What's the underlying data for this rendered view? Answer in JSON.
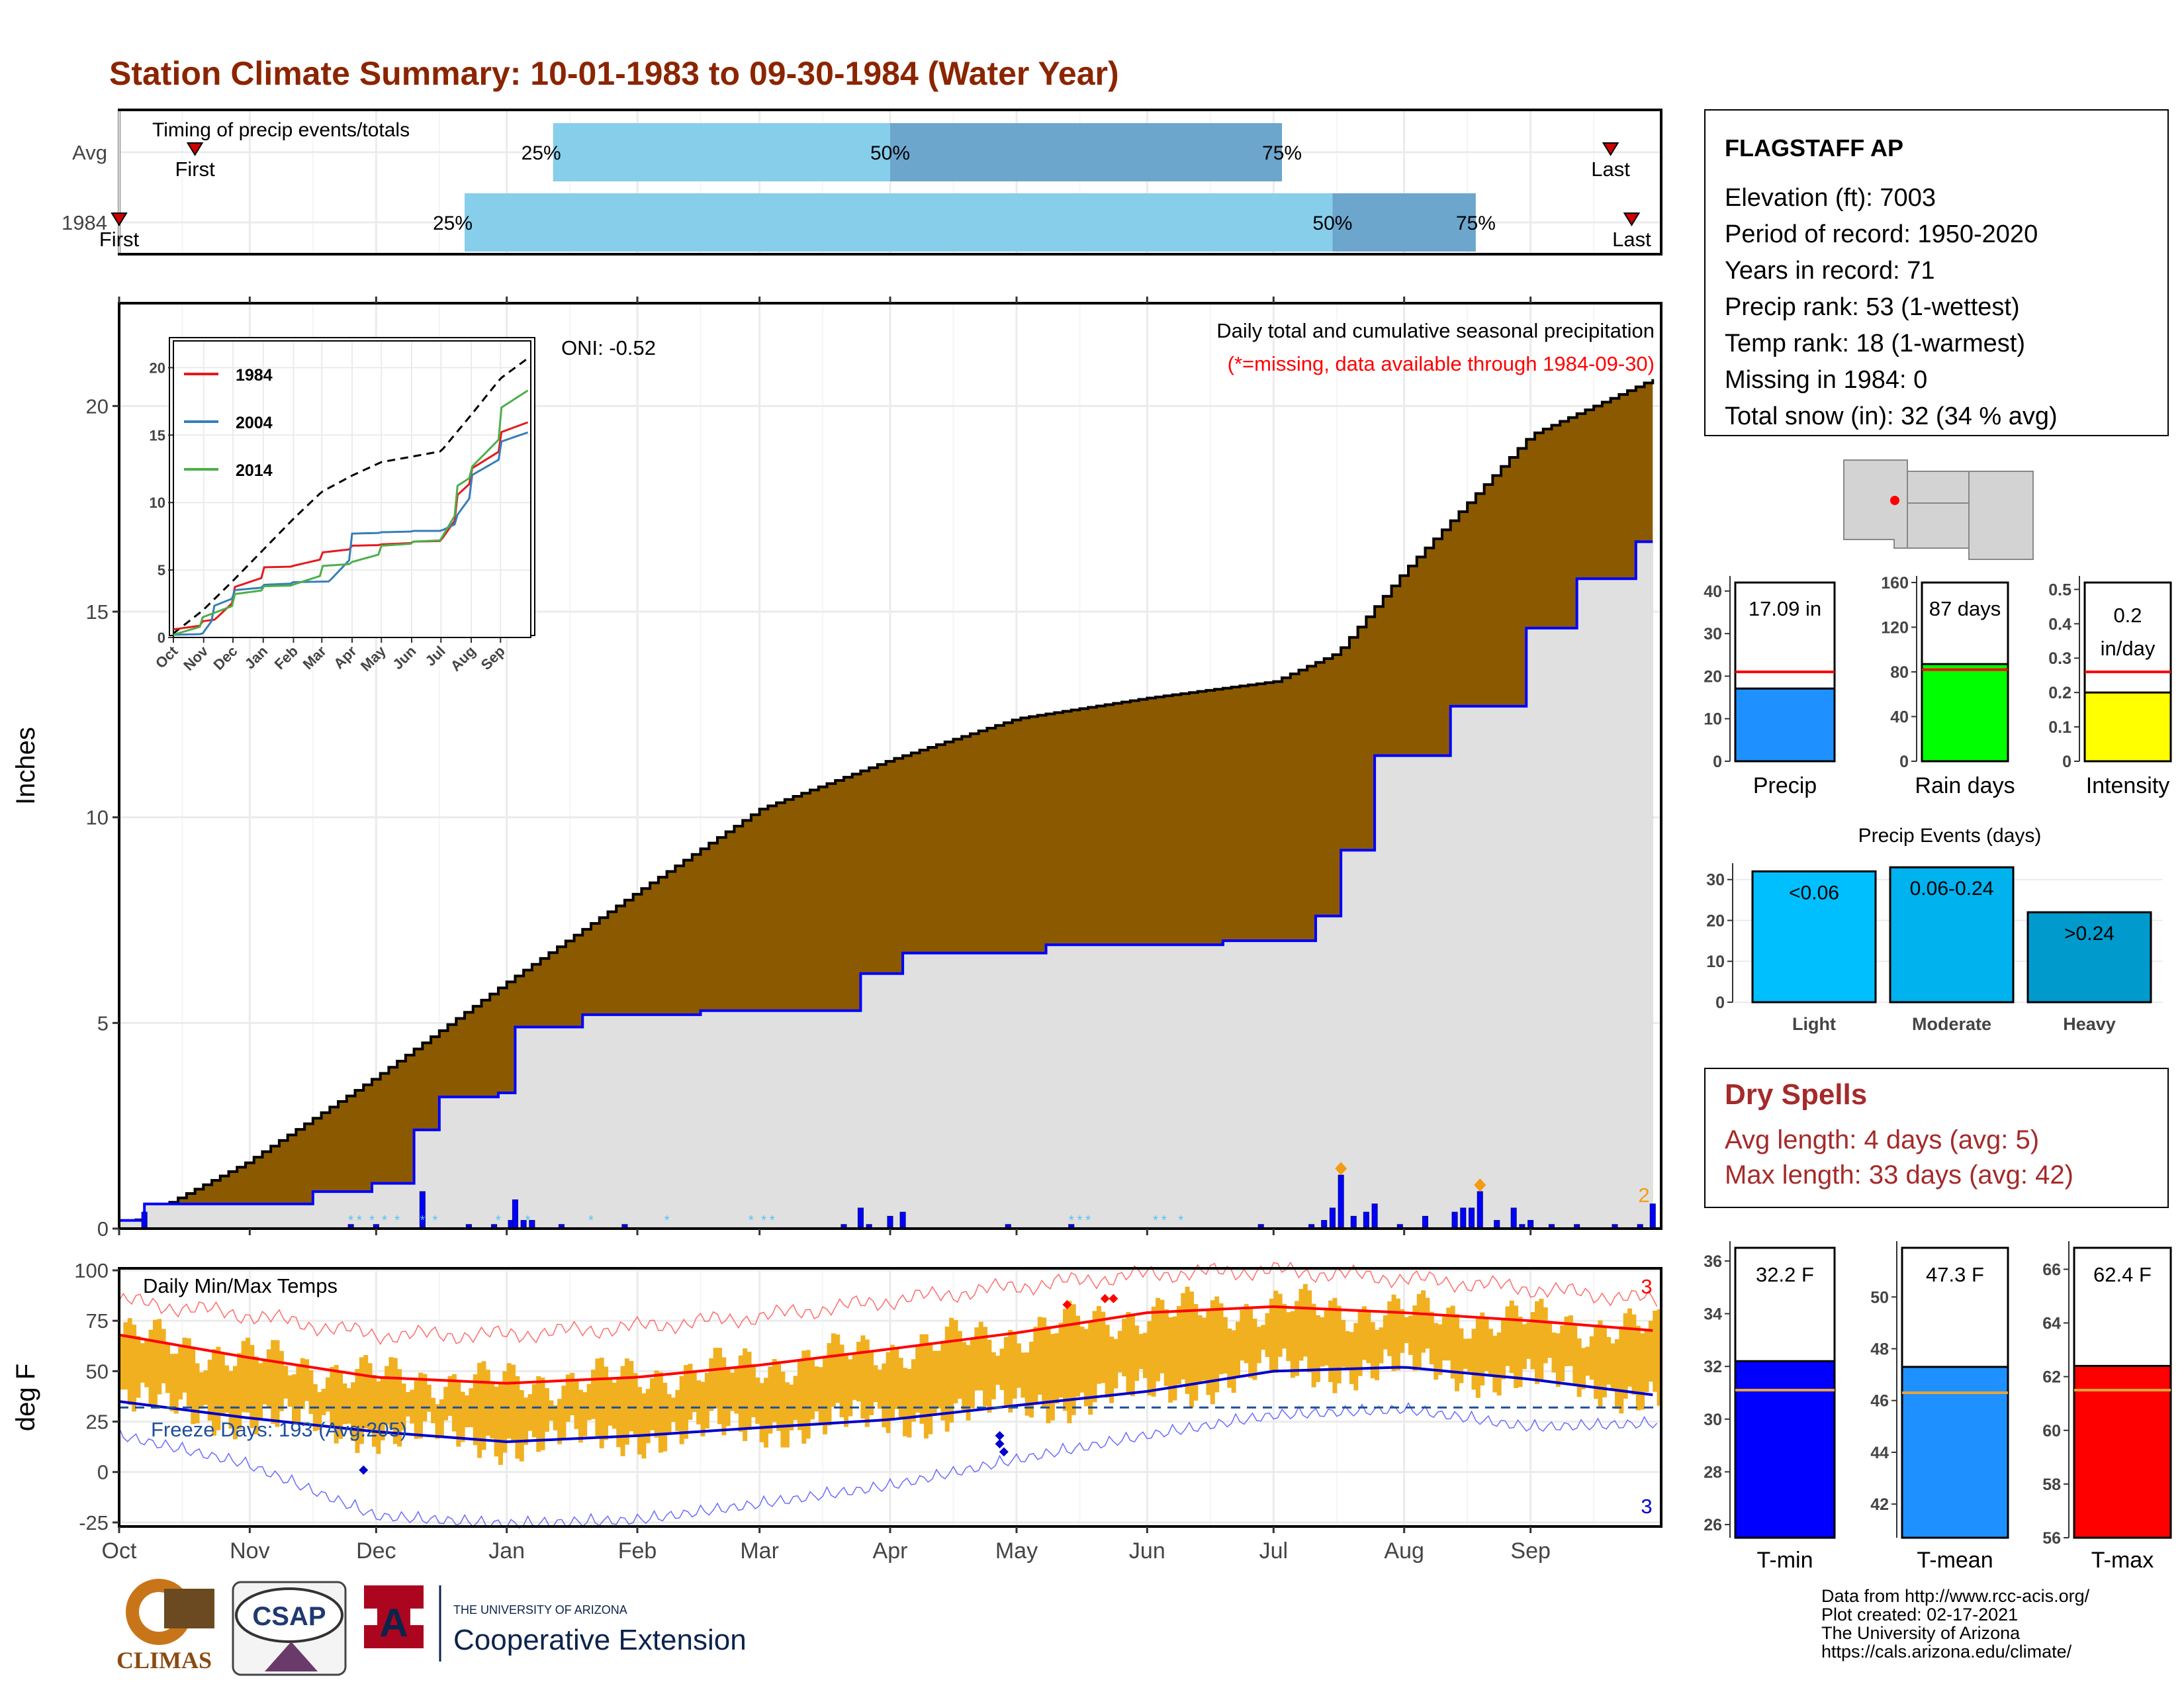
{
  "title": "Station Climate Summary: 10-01-1983 to 09-30-1984 (Water Year)",
  "colors": {
    "title": "#8B2500",
    "light_blue": "#87CEEB",
    "mid_blue": "#6CA6CD",
    "brown": "#8B5A00",
    "cum_line": "#0000FF",
    "bar_gold": "#F0B020",
    "tmax_red": "#FF0000",
    "tmin_blue": "#0000CC",
    "dry_red": "#A52A2A"
  },
  "timing": {
    "title": "Timing of precip events/totals",
    "rows": [
      {
        "label": "Avg",
        "first": "First",
        "last": "Last",
        "p25": "25%",
        "p50": "50%",
        "p75": "75%"
      },
      {
        "label": "1984",
        "first": "First",
        "last": "Last",
        "p25": "25%",
        "p50": "50%",
        "p75": "75%"
      }
    ]
  },
  "precip_panel": {
    "ylabel": "Inches",
    "note1": "Daily total and cumulative seasonal precipitation",
    "note2": "(*=missing, data available through 1984-09-30)",
    "oni": "ONI: -0.52",
    "count_label": "2",
    "inset_legend": [
      "1984",
      "2004",
      "2014"
    ]
  },
  "temp_panel": {
    "ylabel": "deg F",
    "title": "Daily Min/Max Temps",
    "freeze": "Freeze Days: 193 (Avg:205)",
    "count_top": "3",
    "count_bottom": "3"
  },
  "months": [
    "Oct",
    "Nov",
    "Dec",
    "Jan",
    "Feb",
    "Mar",
    "Apr",
    "May",
    "Jun",
    "Jul",
    "Aug",
    "Sep"
  ],
  "inset_months": [
    "Oct",
    "Nov",
    "Dec",
    "Jan",
    "Feb",
    "Mar",
    "Apr",
    "May",
    "Jun",
    "Jul",
    "Aug",
    "Sep"
  ],
  "station": {
    "name": "FLAGSTAFF AP",
    "lines": [
      "Elevation (ft): 7003",
      "Period of record: 1950-2020",
      "Years in record: 71",
      "Precip rank: 53 (1-wettest)",
      "Temp rank: 18 (1-warmest)",
      "Missing in 1984: 0",
      "Total snow (in): 32 (34 % avg)"
    ]
  },
  "dry_spells": {
    "title": "Dry Spells",
    "avg": "Avg length: 4 days (avg: 5)",
    "max": "Max length: 33 days (avg: 42)"
  },
  "footer": [
    "Data from http://www.rcc-acis.org/",
    "Plot created: 02-17-2021",
    "The University of Arizona",
    "https://cals.arizona.edu/climate/"
  ],
  "logos": {
    "climas": "CLIMAS",
    "csap": "CSAP",
    "ua_small": "THE UNIVERSITY OF ARIZONA",
    "ua_big": "Cooperative Extension"
  },
  "chart_data": [
    {
      "type": "bar",
      "name": "timing",
      "categories": [
        "Avg",
        "1984"
      ],
      "percentile_dates": {
        "Avg": {
          "first": "Oct 19",
          "p25": "Jan 12",
          "p50": "Apr 1",
          "p75": "Jul 3",
          "last": "Sep 20"
        },
        "1984": {
          "first": "Oct 1",
          "p25": "Dec 22",
          "p50": "Jul 15",
          "p75": "Aug 18",
          "last": "Sep 25"
        }
      }
    },
    {
      "type": "area",
      "title": "Daily total and cumulative seasonal precipitation",
      "ylabel": "Inches",
      "ylim": [
        0,
        22.5
      ],
      "yticks": [
        0,
        5,
        10,
        15,
        20
      ],
      "avg_cumulative": [
        [
          0,
          0
        ],
        [
          30,
          1.6
        ],
        [
          61,
          3.7
        ],
        [
          92,
          6.0
        ],
        [
          123,
          8.2
        ],
        [
          152,
          10.2
        ],
        [
          183,
          11.4
        ],
        [
          213,
          12.4
        ],
        [
          244,
          12.9
        ],
        [
          274,
          13.3
        ],
        [
          289,
          14.0
        ],
        [
          305,
          16.0
        ],
        [
          335,
          19.3
        ],
        [
          365,
          20.7
        ]
      ],
      "cumulative_1984": [
        [
          0,
          0.2
        ],
        [
          6,
          0.6
        ],
        [
          45,
          0.9
        ],
        [
          60,
          1.1
        ],
        [
          70,
          2.4
        ],
        [
          76,
          3.2
        ],
        [
          90,
          3.3
        ],
        [
          94,
          4.9
        ],
        [
          109,
          5.2
        ],
        [
          137,
          5.3
        ],
        [
          175,
          6.2
        ],
        [
          186,
          6.7
        ],
        [
          220,
          6.9
        ],
        [
          262,
          7.0
        ],
        [
          283,
          7.6
        ],
        [
          290,
          9.2
        ],
        [
          298,
          11.5
        ],
        [
          316,
          12.7
        ],
        [
          333,
          14.6
        ],
        [
          345,
          15.8
        ],
        [
          360,
          16.7
        ],
        [
          365,
          17.1
        ]
      ],
      "daily_bars": [
        [
          6,
          0.4
        ],
        [
          55,
          0.1
        ],
        [
          61,
          0.1
        ],
        [
          72,
          0.9
        ],
        [
          83,
          0.1
        ],
        [
          89,
          0.1
        ],
        [
          93,
          0.2
        ],
        [
          94,
          0.7
        ],
        [
          96,
          0.2
        ],
        [
          98,
          0.2
        ],
        [
          105,
          0.1
        ],
        [
          120,
          0.1
        ],
        [
          172,
          0.1
        ],
        [
          176,
          0.5
        ],
        [
          178,
          0.1
        ],
        [
          183,
          0.3
        ],
        [
          186,
          0.4
        ],
        [
          211,
          0.1
        ],
        [
          226,
          0.1
        ],
        [
          271,
          0.1
        ],
        [
          283,
          0.1
        ],
        [
          286,
          0.2
        ],
        [
          288,
          0.5
        ],
        [
          290,
          1.3
        ],
        [
          293,
          0.3
        ],
        [
          296,
          0.4
        ],
        [
          298,
          0.6
        ],
        [
          304,
          0.1
        ],
        [
          310,
          0.3
        ],
        [
          317,
          0.4
        ],
        [
          319,
          0.5
        ],
        [
          321,
          0.5
        ],
        [
          323,
          0.9
        ],
        [
          327,
          0.2
        ],
        [
          331,
          0.5
        ],
        [
          333,
          0.1
        ],
        [
          335,
          0.2
        ],
        [
          340,
          0.1
        ],
        [
          346,
          0.1
        ],
        [
          355,
          0.1
        ],
        [
          361,
          0.1
        ],
        [
          364,
          0.6
        ]
      ]
    },
    {
      "type": "line",
      "name": "inset cumulative",
      "ylim": [
        0,
        20
      ],
      "series": [
        {
          "name": "",
          "values": [
            [
              0,
              0.3
            ],
            [
              30,
              2.0
            ],
            [
              61,
              4.2
            ],
            [
              92,
              6.5
            ],
            [
              123,
              8.8
            ],
            [
              152,
              10.8
            ],
            [
              183,
              12.0
            ],
            [
              213,
              13.0
            ],
            [
              244,
              13.4
            ],
            [
              274,
              13.8
            ],
            [
              305,
              16.5
            ],
            [
              335,
              19.2
            ],
            [
              365,
              20.8
            ]
          ]
        },
        {
          "name": "1984",
          "values": [
            [
              0,
              0.6
            ],
            [
              30,
              1.2
            ],
            [
              45,
              1.5
            ],
            [
              61,
              3.7
            ],
            [
              92,
              5.2
            ],
            [
              122,
              5.3
            ],
            [
              152,
              6.3
            ],
            [
              183,
              6.8
            ],
            [
              213,
              6.9
            ],
            [
              244,
              7.1
            ],
            [
              274,
              7.2
            ],
            [
              290,
              10.5
            ],
            [
              305,
              12.5
            ],
            [
              335,
              15.2
            ],
            [
              365,
              16.8
            ]
          ]
        },
        {
          "name": "2004",
          "values": [
            [
              0,
              0.2
            ],
            [
              30,
              0.3
            ],
            [
              40,
              2.3
            ],
            [
              61,
              3.5
            ],
            [
              92,
              3.9
            ],
            [
              122,
              4.1
            ],
            [
              160,
              4.2
            ],
            [
              183,
              7.7
            ],
            [
              213,
              7.8
            ],
            [
              244,
              7.9
            ],
            [
              274,
              7.9
            ],
            [
              290,
              9.0
            ],
            [
              305,
              12.0
            ],
            [
              335,
              14.5
            ],
            [
              365,
              16.0
            ]
          ]
        },
        {
          "name": "2014",
          "values": [
            [
              0,
              0.2
            ],
            [
              30,
              1.5
            ],
            [
              61,
              3.2
            ],
            [
              92,
              3.8
            ],
            [
              122,
              3.9
            ],
            [
              152,
              5.3
            ],
            [
              183,
              5.6
            ],
            [
              213,
              6.8
            ],
            [
              244,
              7.1
            ],
            [
              274,
              7.3
            ],
            [
              290,
              11.2
            ],
            [
              305,
              12.6
            ],
            [
              335,
              17.0
            ],
            [
              365,
              19.8
            ]
          ]
        }
      ]
    },
    {
      "type": "bar",
      "name": "temperature",
      "title": "Daily Min/Max Temps",
      "ylabel": "deg F",
      "ylim": [
        -27,
        101
      ],
      "yticks": [
        -25,
        0,
        25,
        50,
        75,
        100
      ],
      "freeze_line": 32,
      "normal_max": [
        [
          0,
          68
        ],
        [
          30,
          57
        ],
        [
          61,
          47
        ],
        [
          92,
          44
        ],
        [
          123,
          47
        ],
        [
          152,
          53
        ],
        [
          183,
          61
        ],
        [
          213,
          69
        ],
        [
          244,
          79
        ],
        [
          274,
          82
        ],
        [
          305,
          79
        ],
        [
          335,
          75
        ],
        [
          365,
          70
        ]
      ],
      "normal_min": [
        [
          0,
          35
        ],
        [
          30,
          27
        ],
        [
          61,
          20
        ],
        [
          92,
          15
        ],
        [
          123,
          18
        ],
        [
          152,
          22
        ],
        [
          183,
          26
        ],
        [
          213,
          33
        ],
        [
          244,
          40
        ],
        [
          274,
          50
        ],
        [
          305,
          52
        ],
        [
          335,
          46
        ],
        [
          365,
          38
        ]
      ],
      "record_max": [
        [
          0,
          85
        ],
        [
          30,
          78
        ],
        [
          61,
          68
        ],
        [
          92,
          68
        ],
        [
          123,
          72
        ],
        [
          152,
          77
        ],
        [
          183,
          85
        ],
        [
          213,
          92
        ],
        [
          244,
          98
        ],
        [
          274,
          100
        ],
        [
          305,
          96
        ],
        [
          335,
          91
        ],
        [
          365,
          85
        ]
      ],
      "record_min": [
        [
          0,
          22
        ],
        [
          30,
          8
        ],
        [
          61,
          -18
        ],
        [
          92,
          -22
        ],
        [
          123,
          -20
        ],
        [
          152,
          -12
        ],
        [
          183,
          -3
        ],
        [
          213,
          10
        ],
        [
          244,
          22
        ],
        [
          274,
          32
        ],
        [
          305,
          35
        ],
        [
          335,
          26
        ],
        [
          365,
          28
        ]
      ]
    },
    {
      "type": "bar",
      "name": "totals",
      "categories": [
        "Precip",
        "Rain days",
        "Intensity"
      ],
      "values": [
        17.09,
        87,
        0.2
      ],
      "averages": [
        21,
        82,
        0.26
      ],
      "labels": [
        "17.09 in",
        "87 days",
        "0.2 in/day"
      ],
      "ylims": [
        [
          0,
          42
        ],
        [
          0,
          160
        ],
        [
          0,
          0.52
        ]
      ]
    },
    {
      "type": "bar",
      "title": "Precip Events (days)",
      "categories": [
        "Light",
        "Moderate",
        "Heavy"
      ],
      "labels": [
        "<0.06",
        "0.06-0.24",
        ">0.24"
      ],
      "values": [
        32,
        33,
        22
      ],
      "ylim": [
        0,
        34
      ]
    },
    {
      "type": "bar",
      "name": "mean temperatures",
      "categories": [
        "T-min",
        "T-mean",
        "T-max"
      ],
      "values": [
        32.2,
        47.3,
        62.4
      ],
      "labels": [
        "32.2 F",
        "47.3 F",
        "62.4 F"
      ],
      "averages": [
        31.1,
        46.3,
        61.5
      ],
      "ylims": [
        [
          25.5,
          36.5
        ],
        [
          40.7,
          51.9
        ],
        [
          56,
          66.8
        ]
      ]
    }
  ]
}
